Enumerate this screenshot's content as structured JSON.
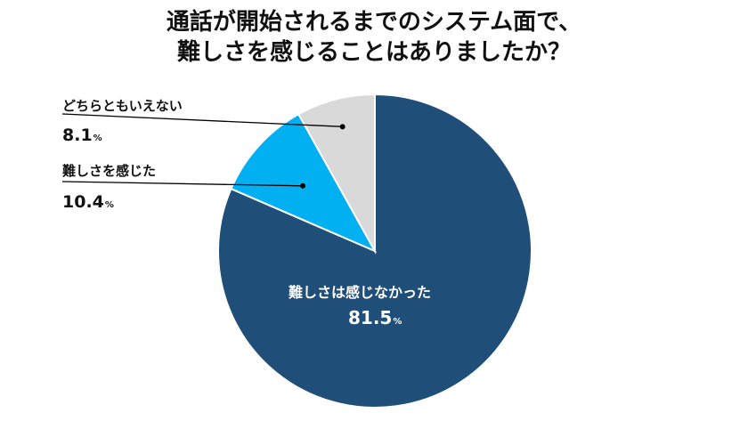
{
  "title": {
    "line1": "通話が開始されるまでのシステム面で、",
    "line2": "難しさを感じることはありましたか？"
  },
  "chart_data": {
    "type": "pie",
    "categories": [
      "難しさは感じなかった",
      "難しさを感じた",
      "どちらともいえない"
    ],
    "values": [
      81.5,
      10.4,
      8.1
    ],
    "unit": "%",
    "colors": [
      "#1f4e79",
      "#00b0f0",
      "#d9d9d9"
    ],
    "start": "12 o'clock",
    "direction": "clockwise"
  },
  "labels": {
    "neither": {
      "name": "どちらともいえない",
      "value": "8.1",
      "unit": "%"
    },
    "felt": {
      "name": "難しさを感じた",
      "value": "10.4",
      "unit": "%"
    },
    "not_felt": {
      "name": "難しさは感じなかった",
      "value": "81.5",
      "unit": "%"
    }
  }
}
